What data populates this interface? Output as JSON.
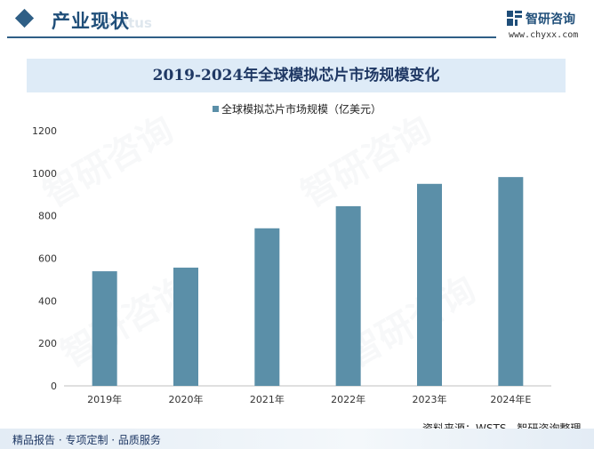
{
  "header": {
    "section_title": "产业现状",
    "section_watermark": "Status",
    "logo_name": "智研咨询",
    "logo_url": "www.chyxx.com"
  },
  "chart_data": {
    "type": "bar",
    "title": "2019-2024年全球模拟芯片市场规模变化",
    "categories": [
      "2019年",
      "2020年",
      "2021年",
      "2022年",
      "2023年",
      "2024年E"
    ],
    "series": [
      {
        "name": "全球模拟芯片市场规模（亿美元）",
        "values": [
          539,
          556,
          741,
          845,
          950,
          982
        ]
      }
    ],
    "ylim": [
      0,
      1200
    ],
    "yticks": [
      0,
      200,
      400,
      600,
      800,
      1000,
      1200
    ],
    "xlabel": "",
    "ylabel": "",
    "legend_position": "top-center",
    "grid": false
  },
  "footer": {
    "source": "资料来源：WSTS、智研咨询整理",
    "tagline": "精品报告 · 专项定制 · 品质服务"
  },
  "colors": {
    "bar": "#5b8fa8",
    "brand": "#1f4e79",
    "title_band": "#deebf7"
  }
}
